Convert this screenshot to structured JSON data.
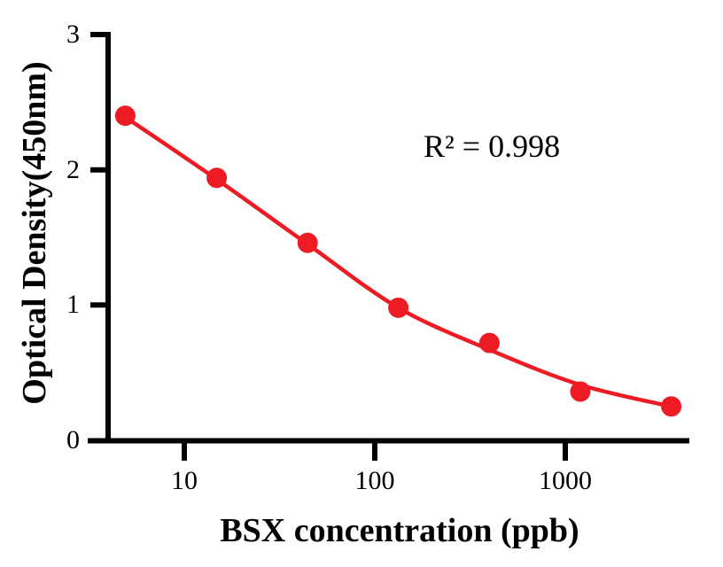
{
  "figure": {
    "y_axis_title": "Optical Density(450nm)",
    "x_axis_title": "BSX concentration (ppb)",
    "annotation": "R² = 0.998"
  },
  "axes": {
    "y_tick_labels": [
      "3",
      "2",
      "1",
      "0"
    ],
    "x_tick_labels": [
      "10",
      "100",
      "1000"
    ]
  },
  "colors": {
    "series": "#ED1C24",
    "axis": "#000000",
    "background": "#FFFFFF"
  },
  "chart_data": {
    "type": "scatter",
    "title": "",
    "xlabel": "BSX concentration (ppb)",
    "ylabel": "Optical Density(450nm)",
    "x_scale": "log",
    "x": [
      4.9,
      14.8,
      44.4,
      133,
      400,
      1200,
      3600
    ],
    "y": [
      2.4,
      1.94,
      1.46,
      0.98,
      0.72,
      0.36,
      0.25
    ],
    "fit_y": [
      2.39,
      1.93,
      1.45,
      0.98,
      0.67,
      0.41,
      0.25
    ],
    "fit": "four-parameter logistic standard curve (decreasing)",
    "r_squared": 0.998,
    "annotation": "R² = 0.998",
    "xticks": [
      10,
      100,
      1000
    ],
    "yticks": [
      0,
      1,
      2,
      3
    ],
    "ylim": [
      0,
      3
    ],
    "xlim_log10": [
      0.59,
      3.65
    ],
    "legend": false,
    "grid": false,
    "marker": "filled-circle",
    "series_color": "#ED1C24"
  }
}
